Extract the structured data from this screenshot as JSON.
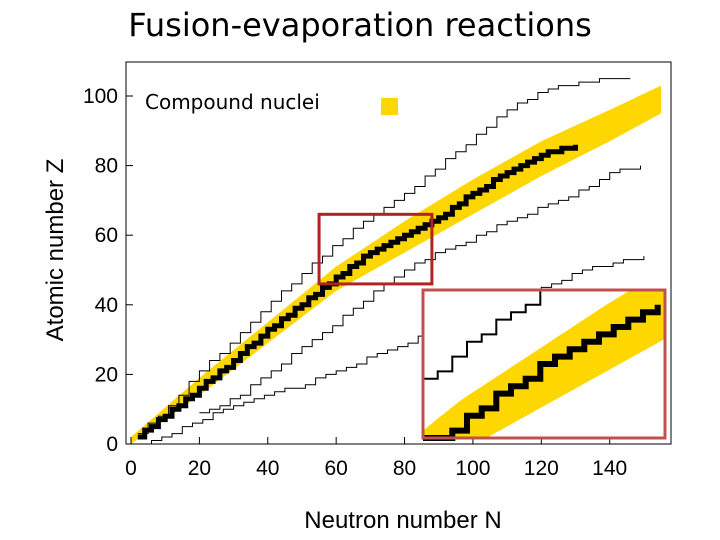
{
  "slide": {
    "title": "Fusion-evaporation reactions"
  },
  "legend": {
    "label": "Compound nuclei",
    "swatch_color": "#FFD700"
  },
  "colors": {
    "band": "#FFD700",
    "stable": "#000000",
    "highlight_box": "#B22222",
    "inset_box": "#C0504D",
    "dripline": "#000000"
  },
  "chart_data": {
    "type": "scatter",
    "title": "",
    "xlabel": "Neutron number N",
    "ylabel": "Atomic number Z",
    "xlim": [
      0,
      155
    ],
    "ylim": [
      0,
      105
    ],
    "xticks": [
      0,
      20,
      40,
      60,
      80,
      100,
      120,
      140
    ],
    "yticks": [
      0,
      20,
      40,
      60,
      80,
      100
    ],
    "series": [
      {
        "name": "Compound nuclei",
        "kind": "band",
        "lower": [
          [
            0,
            0
          ],
          [
            20,
            14
          ],
          [
            40,
            29
          ],
          [
            60,
            44
          ],
          [
            80,
            55
          ],
          [
            100,
            66
          ],
          [
            120,
            77
          ],
          [
            140,
            87
          ],
          [
            155,
            95
          ]
        ],
        "upper": [
          [
            0,
            2
          ],
          [
            20,
            19
          ],
          [
            40,
            35
          ],
          [
            60,
            51
          ],
          [
            80,
            64
          ],
          [
            100,
            76
          ],
          [
            120,
            87
          ],
          [
            140,
            96
          ],
          [
            155,
            103
          ]
        ]
      },
      {
        "kind": "stable_line",
        "points": [
          [
            2,
            2
          ],
          [
            10,
            8
          ],
          [
            20,
            16
          ],
          [
            30,
            24
          ],
          [
            40,
            33
          ],
          [
            50,
            40
          ],
          [
            60,
            48
          ],
          [
            70,
            55
          ],
          [
            80,
            60
          ],
          [
            90,
            65
          ],
          [
            100,
            72
          ],
          [
            110,
            78
          ],
          [
            120,
            83
          ],
          [
            130,
            86
          ]
        ]
      },
      {
        "kind": "proton_dripline",
        "points": [
          [
            2,
            3
          ],
          [
            10,
            10
          ],
          [
            20,
            21
          ],
          [
            30,
            30
          ],
          [
            40,
            40
          ],
          [
            50,
            49
          ],
          [
            60,
            58
          ],
          [
            70,
            65
          ],
          [
            80,
            72
          ],
          [
            90,
            80
          ],
          [
            100,
            88
          ],
          [
            110,
            96
          ],
          [
            120,
            101
          ],
          [
            130,
            104
          ],
          [
            140,
            105
          ],
          [
            147,
            105
          ]
        ]
      },
      {
        "kind": "neutron_dripline",
        "points": [
          [
            3,
            0
          ],
          [
            12,
            3
          ],
          [
            20,
            7
          ],
          [
            30,
            11
          ],
          [
            40,
            14
          ],
          [
            50,
            17
          ],
          [
            60,
            21
          ],
          [
            70,
            25
          ],
          [
            80,
            29
          ],
          [
            90,
            33
          ],
          [
            100,
            37
          ],
          [
            110,
            41
          ],
          [
            120,
            45
          ],
          [
            130,
            49
          ],
          [
            140,
            52
          ],
          [
            150,
            54
          ]
        ]
      },
      {
        "kind": "ref_line_1",
        "points": [
          [
            20,
            9
          ],
          [
            30,
            13
          ],
          [
            40,
            20
          ],
          [
            50,
            28
          ],
          [
            60,
            35
          ],
          [
            70,
            43
          ],
          [
            80,
            50
          ],
          [
            90,
            55
          ],
          [
            100,
            59
          ],
          [
            110,
            64
          ],
          [
            120,
            68
          ],
          [
            130,
            72
          ],
          [
            140,
            78
          ],
          [
            150,
            80
          ]
        ]
      }
    ],
    "highlight_region": {
      "x": [
        55,
        88
      ],
      "y": [
        46,
        66
      ]
    },
    "inset": {
      "note": "zoomed view of highlighted region"
    }
  }
}
